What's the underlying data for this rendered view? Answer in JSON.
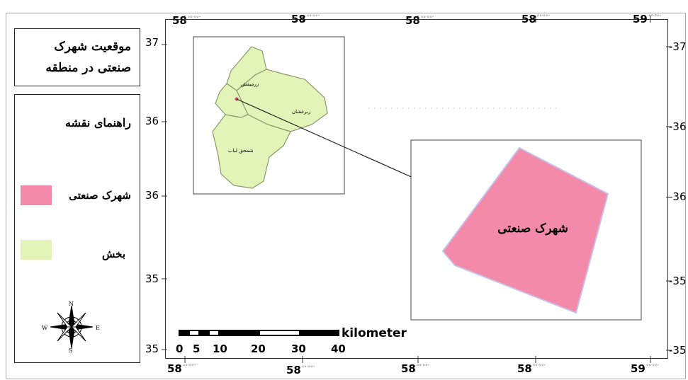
{
  "title": "موقعیت شهرک صنعتی در منطقه",
  "legend": {
    "title": "راهنمای نقشه",
    "items": [
      {
        "label": "شهرک صنعتی",
        "color": "#f48aaa"
      },
      {
        "label": "بخش",
        "color": "#e3f4b8"
      }
    ]
  },
  "axes": {
    "top_ticks": [
      "58",
      "58",
      "58",
      "58",
      "59"
    ],
    "bottom_ticks": [
      "58",
      "58",
      "58",
      "58",
      "59"
    ],
    "left_ticks": [
      "37",
      "36",
      "36",
      "35",
      "35"
    ],
    "right_ticks": [
      "37",
      "36",
      "36",
      "35",
      "35"
    ]
  },
  "inset": {
    "districts": [
      "زرمیفش",
      "زبرغشان",
      "شمحق لباب"
    ]
  },
  "zoom": {
    "label": "شهرک صنعتی"
  },
  "scale_bar": {
    "ticks": [
      "0",
      "5",
      "10",
      "20",
      "30",
      "40"
    ],
    "unit": "kilometer"
  },
  "north_arrow": {
    "N": "N",
    "S": "S",
    "E": "E",
    "W": "W"
  },
  "colors": {
    "industrial": "#f48aaa",
    "district": "#e3f4b8",
    "district_edge": "#8a9a6a"
  }
}
